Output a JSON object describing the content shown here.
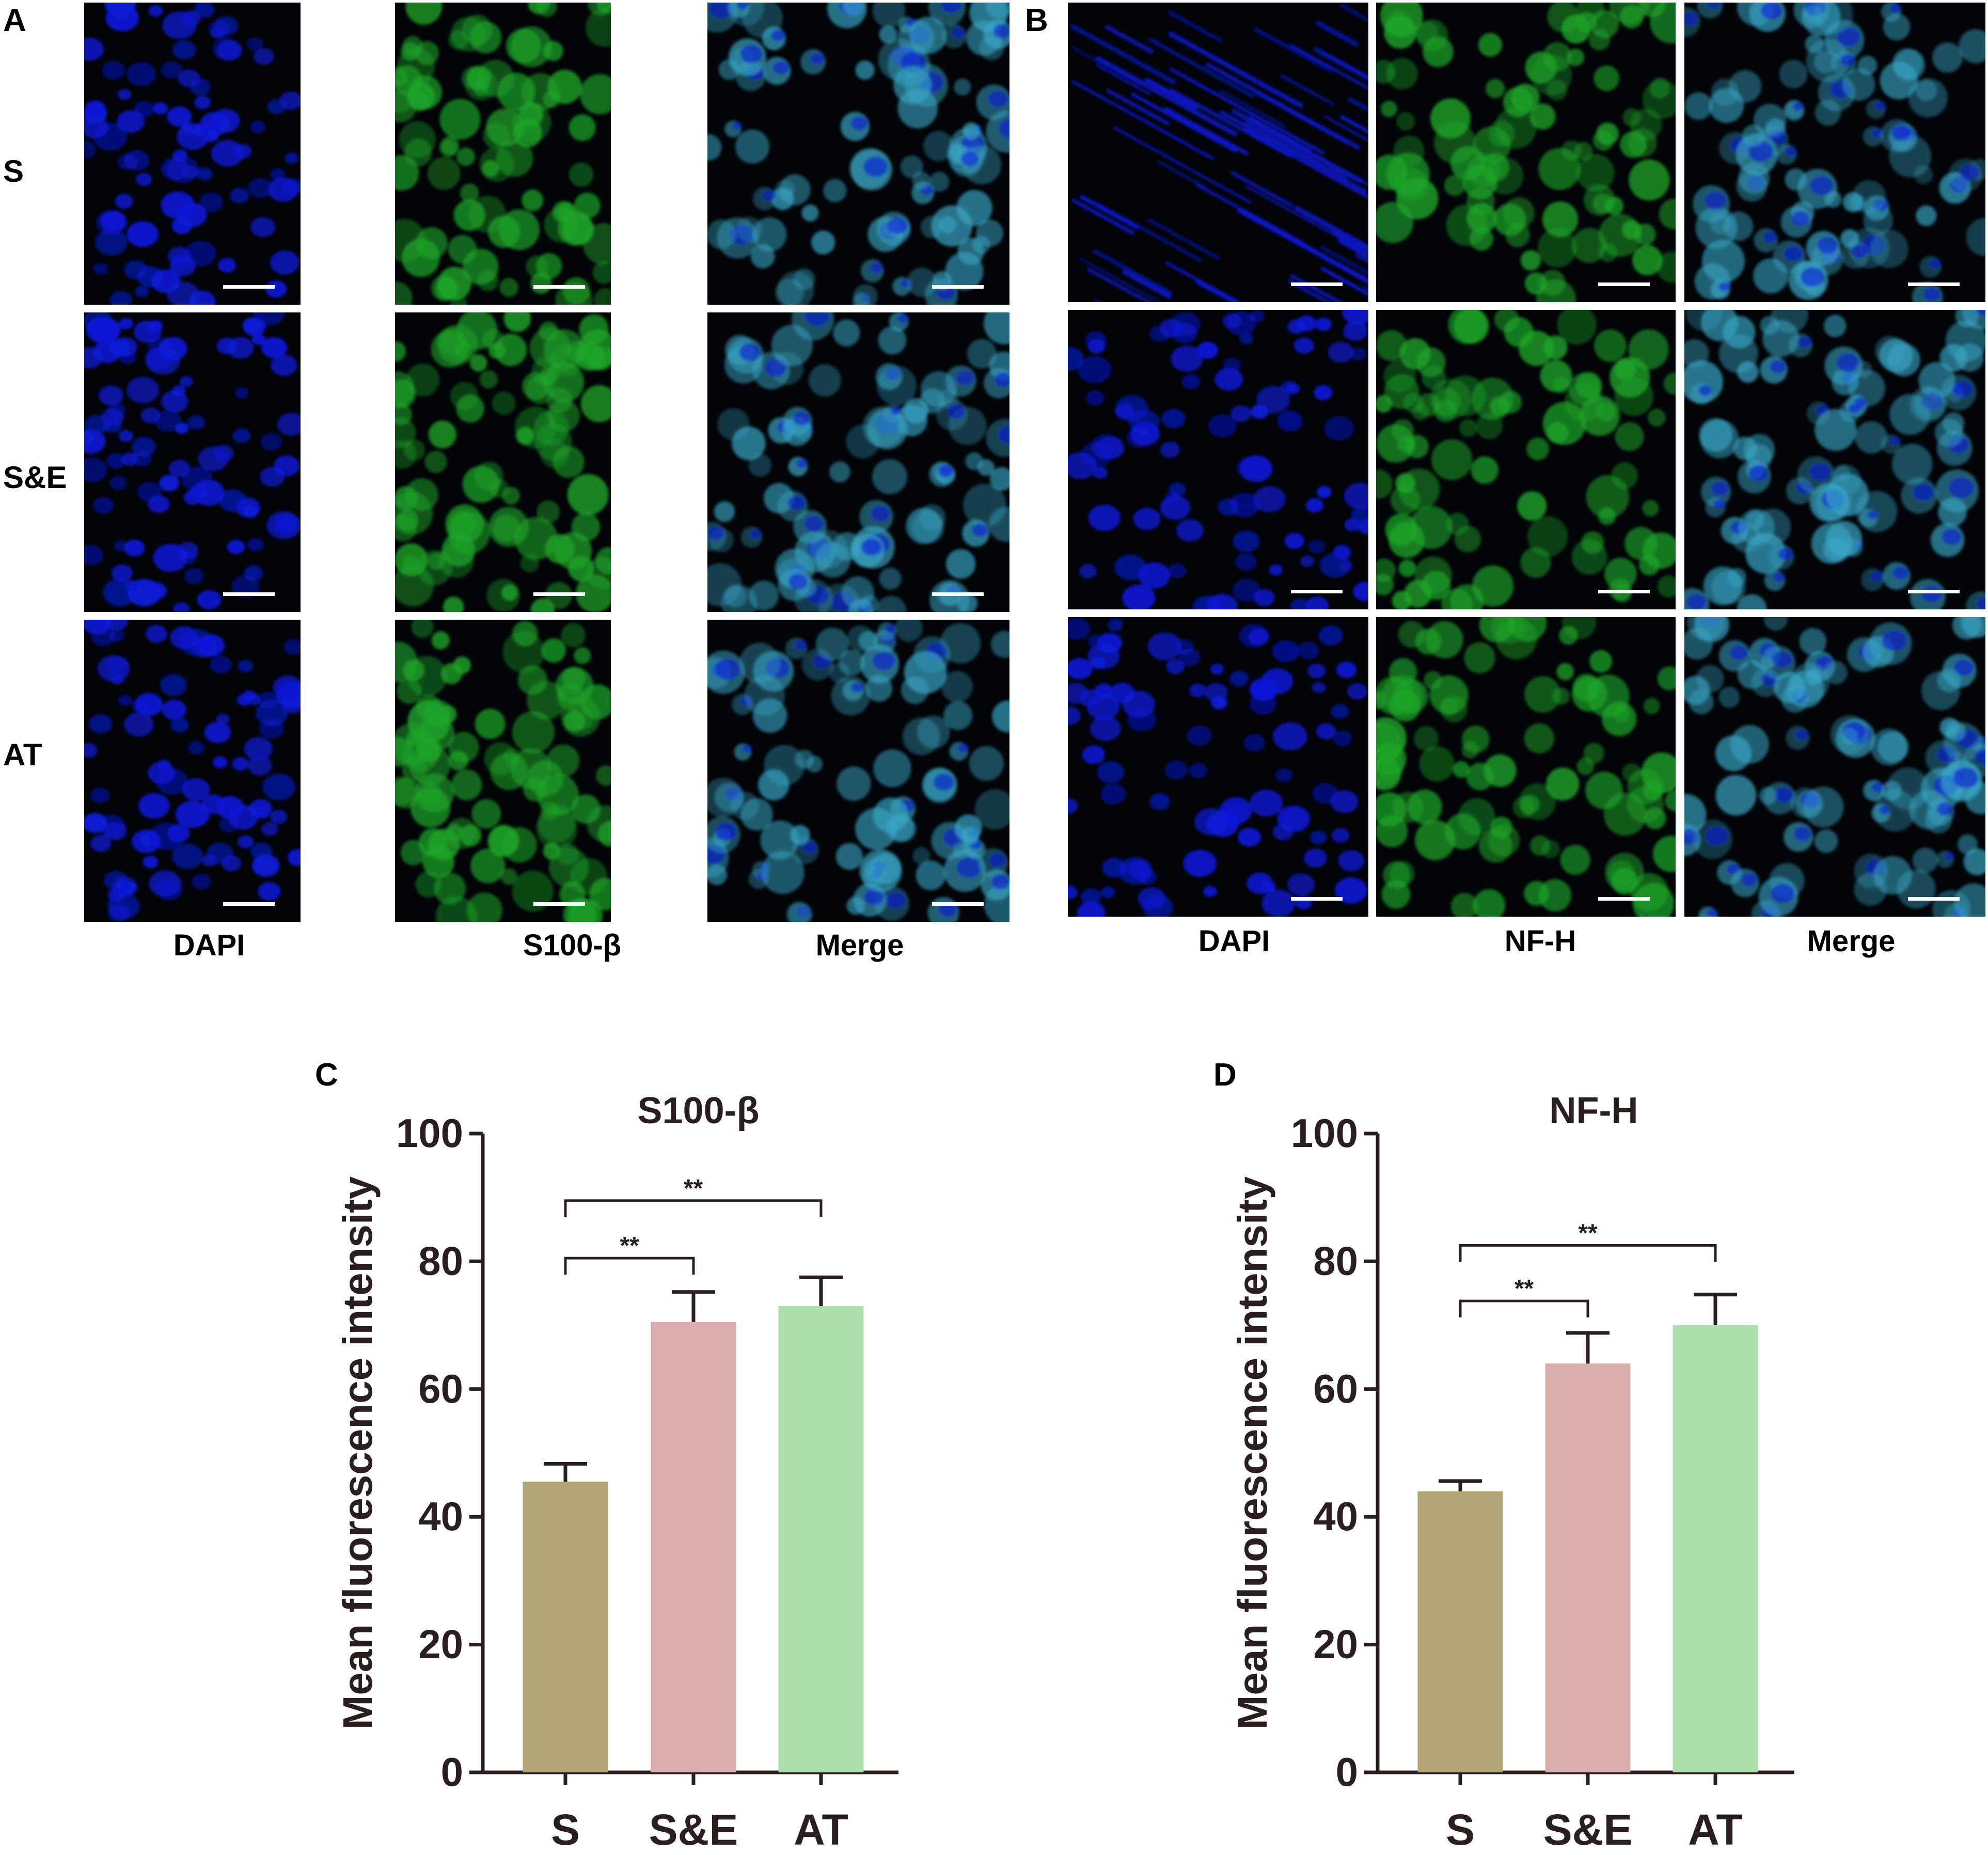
{
  "figure": {
    "panel_letters": {
      "A": "A",
      "B": "B",
      "C": "C",
      "D": "D"
    },
    "row_labels": [
      "S",
      "S&E",
      "AT"
    ],
    "panel_A": {
      "columns": [
        "DAPI",
        "S100-β",
        "Merge"
      ]
    },
    "panel_B": {
      "columns": [
        "DAPI",
        "NF-H",
        "Merge"
      ]
    },
    "micrograph_colors": {
      "dapi": "#0a1ad8",
      "green": "#1fa82a",
      "merge_cyan": "#3aa8c8",
      "background": "#020408"
    }
  },
  "chart_data": [
    {
      "panel": "C",
      "type": "bar",
      "title": "S100-β",
      "ylabel": "Mean fluorescence intensity",
      "xlabel": "",
      "categories": [
        "S",
        "S&E",
        "AT"
      ],
      "values": [
        45.5,
        70.5,
        73
      ],
      "errors": [
        2.8,
        4.7,
        4.5
      ],
      "colors": [
        "#b2a679",
        "#d9aeac",
        "#addfab"
      ],
      "ylim": [
        0,
        100
      ],
      "yticks": [
        0,
        20,
        40,
        60,
        80,
        100
      ],
      "significance": [
        {
          "from": 0,
          "to": 1,
          "label": "**",
          "y": 80.5
        },
        {
          "from": 0,
          "to": 2,
          "label": "**",
          "y": 89.5
        }
      ],
      "grid": false
    },
    {
      "panel": "D",
      "type": "bar",
      "title": "NF-H",
      "ylabel": "Mean fluorescence intensity",
      "xlabel": "",
      "categories": [
        "S",
        "S&E",
        "AT"
      ],
      "values": [
        44,
        64,
        70
      ],
      "errors": [
        1.6,
        4.8,
        4.8
      ],
      "colors": [
        "#b2a679",
        "#d9aeac",
        "#addfab"
      ],
      "ylim": [
        0,
        100
      ],
      "yticks": [
        0,
        20,
        40,
        60,
        80,
        100
      ],
      "significance": [
        {
          "from": 0,
          "to": 1,
          "label": "**",
          "y": 73.8
        },
        {
          "from": 0,
          "to": 2,
          "label": "**",
          "y": 82.5
        }
      ],
      "grid": false
    }
  ]
}
